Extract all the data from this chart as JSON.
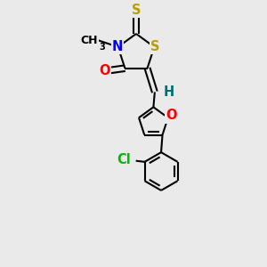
{
  "bg_color": "#eaeaea",
  "atom_colors": {
    "S": "#b8a000",
    "N": "#0000ff",
    "O": "#ff0000",
    "Cl": "#00bb00",
    "H": "#007070",
    "C": "#000000"
  },
  "lw": 1.5,
  "fs": 10.5,
  "fs_small": 9.0,
  "xlim": [
    0,
    10
  ],
  "ylim": [
    0,
    10
  ]
}
